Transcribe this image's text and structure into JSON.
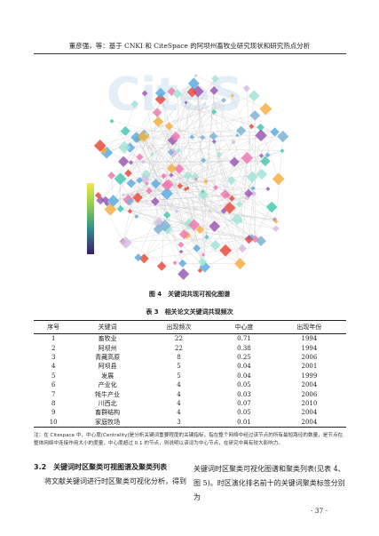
{
  "header": {
    "title": "董彦强，等：基于 CNKI 和 CiteSpace 的阿坝州畜牧业研究现状和研究热点分析"
  },
  "figure": {
    "caption": "图 4　关键词共现可视化图谱"
  },
  "table": {
    "caption": "表 3　相关论文关键词共现频次",
    "columns": [
      "序号",
      "关键词",
      "出现频次",
      "中心度",
      "出现年份"
    ],
    "rows": [
      [
        1,
        "畜牧业",
        22,
        0.71,
        1994
      ],
      [
        2,
        "阿坝州",
        22,
        0.38,
        1994
      ],
      [
        3,
        "青藏高原",
        8,
        0.25,
        2006
      ],
      [
        4,
        "阿坝县",
        5,
        0.04,
        2001
      ],
      [
        5,
        "发展",
        5,
        0.04,
        1999
      ],
      [
        6,
        "产业化",
        4,
        0.05,
        2004
      ],
      [
        7,
        "牦牛产业",
        4,
        0.03,
        2006
      ],
      [
        8,
        "川西北",
        4,
        0.07,
        2010
      ],
      [
        9,
        "畜群结构",
        4,
        0.05,
        2004
      ],
      [
        10,
        "家庭牧场",
        3,
        0.01,
        2004
      ]
    ],
    "note": "注：在 Citespace 中，中心度(Centrality)是分析关键词重要程度的关键指标，指在整个网络中经过该节点的所有最短路径的数量，是节点在整体网络中连接作用大小的度量，中心度超过 0.1 的节点，则说明以该词为中心节点，在研究中具有较大影响力。"
  },
  "section": {
    "heading": "3.2　关键词时区聚类可视图谱及聚类列表",
    "left_text": "将文献关键词进行时区聚类可视化分析，得到",
    "right_text": "关键词时区聚类可视化图谱和聚类列表(见表 4、图 5)。时区演化排名前十的关键词聚类标签分别为"
  },
  "page_number": "· 37 ·"
}
